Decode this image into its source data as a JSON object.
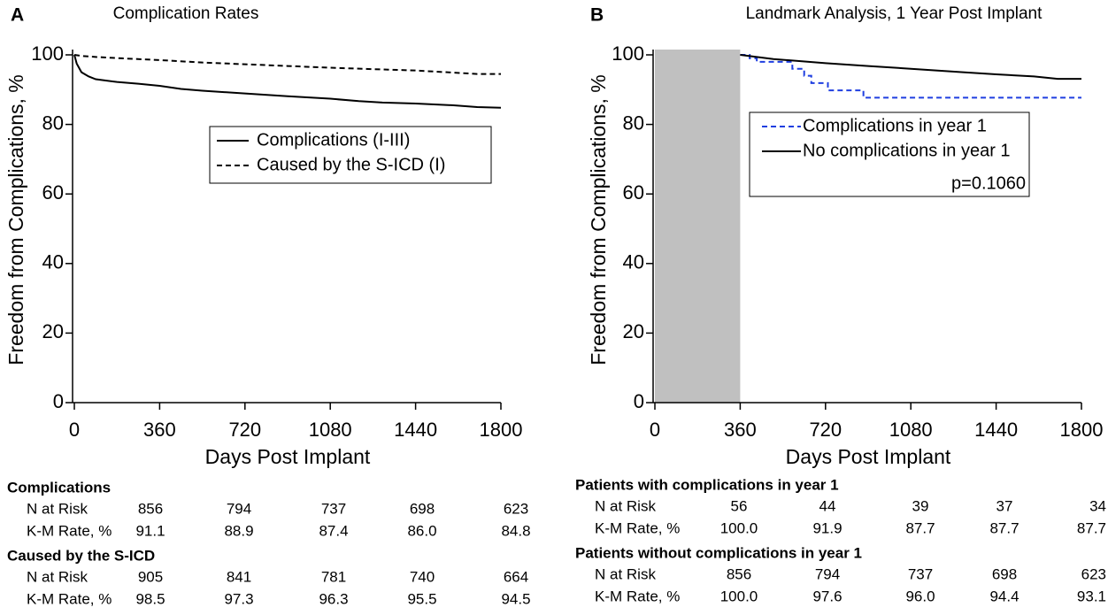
{
  "chart_data": [
    {
      "type": "line",
      "panel": "A",
      "title": "Complication Rates",
      "xlabel": "Days Post Implant",
      "ylabel": "Freedom from Complications, %",
      "xlim": [
        0,
        1800
      ],
      "ylim": [
        0,
        100
      ],
      "xticks": [
        0,
        360,
        720,
        1080,
        1440,
        1800
      ],
      "yticks": [
        0,
        20,
        40,
        60,
        80,
        100
      ],
      "legend": "upper right",
      "series": [
        {
          "name": "Complications (I-III)",
          "color": "#000000",
          "dash": "solid",
          "x": [
            0,
            10,
            30,
            60,
            90,
            180,
            270,
            360,
            450,
            540,
            720,
            900,
            1080,
            1200,
            1300,
            1440,
            1600,
            1700,
            1800
          ],
          "values": [
            100,
            97.5,
            95,
            93.8,
            93,
            92.2,
            91.7,
            91.1,
            90.2,
            89.7,
            88.9,
            88.1,
            87.4,
            86.7,
            86.3,
            86.0,
            85.5,
            85.0,
            84.8
          ]
        },
        {
          "name": "Caused by the S-ICD (I)",
          "color": "#000000",
          "dash": "dashed",
          "x": [
            0,
            30,
            90,
            200,
            360,
            540,
            720,
            900,
            1080,
            1300,
            1440,
            1600,
            1700,
            1800
          ],
          "values": [
            100,
            99.7,
            99.4,
            99.0,
            98.5,
            97.8,
            97.3,
            96.8,
            96.3,
            95.8,
            95.5,
            94.9,
            94.5,
            94.5
          ]
        }
      ],
      "risk_table": [
        {
          "title": "Complications",
          "rows": [
            {
              "label": "N at Risk",
              "values": [
                "856",
                "794",
                "737",
                "698",
                "623"
              ]
            },
            {
              "label": "K-M Rate, %",
              "values": [
                "91.1",
                "88.9",
                "87.4",
                "86.0",
                "84.8"
              ]
            }
          ]
        },
        {
          "title": "Caused by the S-ICD",
          "rows": [
            {
              "label": "N at Risk",
              "values": [
                "905",
                "841",
                "781",
                "740",
                "664"
              ]
            },
            {
              "label": "K-M Rate, %",
              "values": [
                "98.5",
                "97.3",
                "96.3",
                "95.5",
                "94.5"
              ]
            }
          ]
        }
      ]
    },
    {
      "type": "line",
      "panel": "B",
      "title": "Landmark Analysis, 1 Year Post Implant",
      "xlabel": "Days Post Implant",
      "ylabel": "Freedom from Complications, %",
      "xlim": [
        0,
        1800
      ],
      "ylim": [
        0,
        100
      ],
      "xticks": [
        0,
        360,
        720,
        1080,
        1440,
        1800
      ],
      "yticks": [
        0,
        20,
        40,
        60,
        80,
        100
      ],
      "legend": "upper right",
      "annotation": "p=0.1060",
      "series": [
        {
          "name": "Complications in year 1",
          "color": "#1f3fe0",
          "dash": "dashed",
          "x": [
            360,
            400,
            400,
            430,
            430,
            580,
            580,
            630,
            630,
            660,
            660,
            730,
            730,
            880,
            880,
            1800
          ],
          "values": [
            100,
            100,
            99,
            99,
            98,
            98,
            96,
            96,
            94,
            94,
            91.9,
            91.9,
            89.8,
            89.8,
            87.7,
            87.7
          ]
        },
        {
          "name": "No complications in year 1",
          "color": "#000000",
          "dash": "solid",
          "x": [
            360,
            500,
            720,
            900,
            1080,
            1300,
            1440,
            1600,
            1700,
            1800
          ],
          "values": [
            100,
            98.8,
            97.6,
            96.8,
            96.0,
            95.0,
            94.4,
            93.8,
            93.1,
            93.1
          ]
        }
      ],
      "risk_table": [
        {
          "title": "Patients with complications in year 1",
          "rows": [
            {
              "label": "N at Risk",
              "values": [
                "56",
                "44",
                "39",
                "37",
                "34"
              ]
            },
            {
              "label": "K-M Rate, %",
              "values": [
                "100.0",
                "91.9",
                "87.7",
                "87.7",
                "87.7"
              ]
            }
          ]
        },
        {
          "title": "Patients without complications in year 1",
          "rows": [
            {
              "label": "N at Risk",
              "values": [
                "856",
                "794",
                "737",
                "698",
                "623"
              ]
            },
            {
              "label": "K-M Rate, %",
              "values": [
                "100.0",
                "97.6",
                "96.0",
                "94.4",
                "93.1"
              ]
            }
          ]
        }
      ]
    }
  ]
}
